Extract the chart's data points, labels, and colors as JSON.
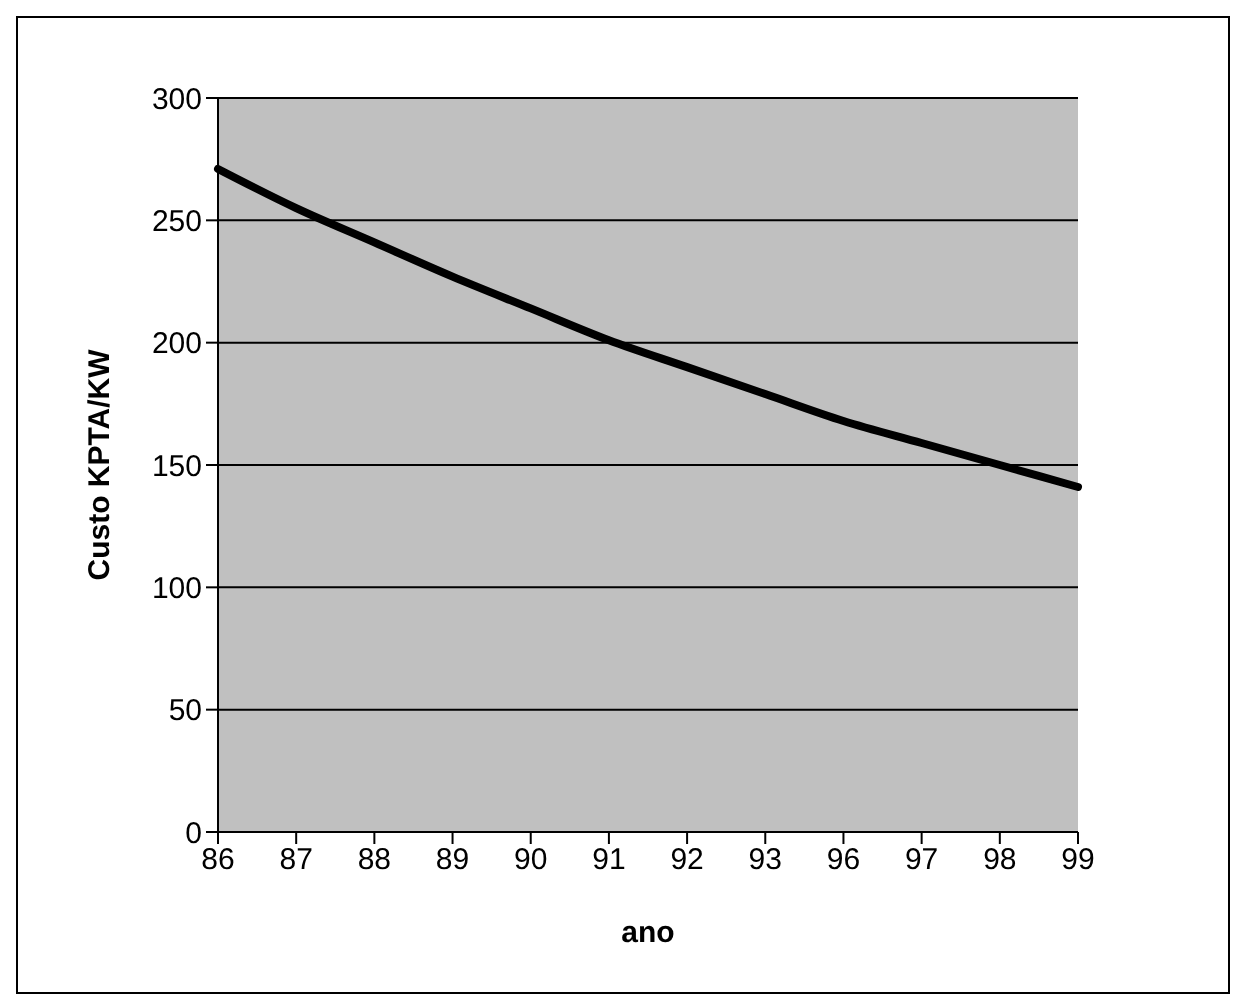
{
  "chart_data": {
    "type": "line",
    "xlabel": "ano",
    "ylabel": "Custo KPTA/KW",
    "categories": [
      "86",
      "87",
      "88",
      "89",
      "90",
      "91",
      "92",
      "93",
      "96",
      "97",
      "98",
      "99"
    ],
    "series": [
      {
        "color": "#000000",
        "values": [
          271,
          255,
          241,
          227,
          214,
          201,
          190,
          179,
          168,
          159,
          150,
          141
        ]
      }
    ],
    "ylim": [
      0,
      300
    ],
    "yticks": [
      0,
      50,
      100,
      150,
      200,
      250,
      300
    ],
    "grid": "y",
    "legend": false,
    "marker": "none",
    "line_style": "solid"
  }
}
